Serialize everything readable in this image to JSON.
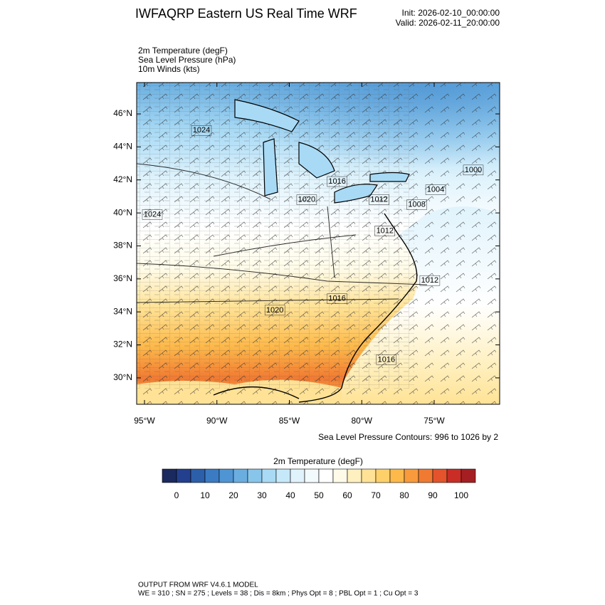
{
  "header": {
    "title": "IWFAQRP Eastern US Real Time WRF",
    "init": "Init: 2026-02-10_00:00:00",
    "valid": "Valid: 2026-02-11_20:00:00"
  },
  "fields": [
    "2m Temperature   (degF)",
    "Sea Level Pressure   (hPa)",
    "10m Winds   (kts)"
  ],
  "map": {
    "xlim": [
      -95.54,
      -70.48
    ],
    "ylim": [
      28.4,
      47.9
    ],
    "xticks": [
      {
        "value": -95,
        "label": "95°W"
      },
      {
        "value": -90,
        "label": "90°W"
      },
      {
        "value": -85,
        "label": "85°W"
      },
      {
        "value": -80,
        "label": "80°W"
      },
      {
        "value": -75,
        "label": "75°W"
      }
    ],
    "yticks": [
      {
        "value": 30,
        "label": "30°N"
      },
      {
        "value": 32,
        "label": "32°N"
      },
      {
        "value": 34,
        "label": "34°N"
      },
      {
        "value": 36,
        "label": "36°N"
      },
      {
        "value": 38,
        "label": "38°N"
      },
      {
        "value": 40,
        "label": "40°N"
      },
      {
        "value": 42,
        "label": "42°N"
      },
      {
        "value": 44,
        "label": "44°N"
      },
      {
        "value": 46,
        "label": "46°N"
      }
    ],
    "contour_labels": [
      {
        "value": 1024,
        "lon": -91.07,
        "lat": 45.0
      },
      {
        "value": 1024,
        "lon": -94.46,
        "lat": 39.9
      },
      {
        "value": 1016,
        "lon": -81.7,
        "lat": 41.9
      },
      {
        "value": 1020,
        "lon": -83.8,
        "lat": 40.8
      },
      {
        "value": 1012,
        "lon": -78.8,
        "lat": 40.8
      },
      {
        "value": 1012,
        "lon": -78.4,
        "lat": 38.9
      },
      {
        "value": 1008,
        "lon": -76.2,
        "lat": 40.5
      },
      {
        "value": 1004,
        "lon": -74.9,
        "lat": 41.4
      },
      {
        "value": 1000,
        "lon": -72.3,
        "lat": 42.6
      },
      {
        "value": 1012,
        "lon": -75.3,
        "lat": 35.9
      },
      {
        "value": 1016,
        "lon": -81.7,
        "lat": 34.8
      },
      {
        "value": 1020,
        "lon": -86.0,
        "lat": 34.1
      },
      {
        "value": 1016,
        "lon": -78.3,
        "lat": 31.1
      }
    ],
    "contour_note": "Sea Level Pressure Contours: 996 to 1026 by 2"
  },
  "colorbar": {
    "title": "2m Temperature  (degF)",
    "ticks": [
      0,
      10,
      20,
      30,
      40,
      50,
      60,
      70,
      80,
      90,
      100
    ],
    "colors": [
      "#1a2a5e",
      "#23408e",
      "#2c5faa",
      "#3b7bc4",
      "#4f95d4",
      "#6aaee0",
      "#88c5eb",
      "#a8daf5",
      "#c6e9fa",
      "#e0f3fc",
      "#f2fafe",
      "#ffffff",
      "#fffbe8",
      "#fff0bf",
      "#ffe295",
      "#fed06a",
      "#fdb94a",
      "#f99a3c",
      "#f17a32",
      "#e4532b",
      "#c92d26",
      "#a51f22"
    ]
  },
  "footer": [
    "OUTPUT FROM WRF V4.6.1 MODEL",
    "WE = 310 ; SN = 275 ; Levels = 38 ; Dis = 8km ; Phys Opt = 8 ; PBL Opt = 1 ; Cu Opt = 3"
  ]
}
